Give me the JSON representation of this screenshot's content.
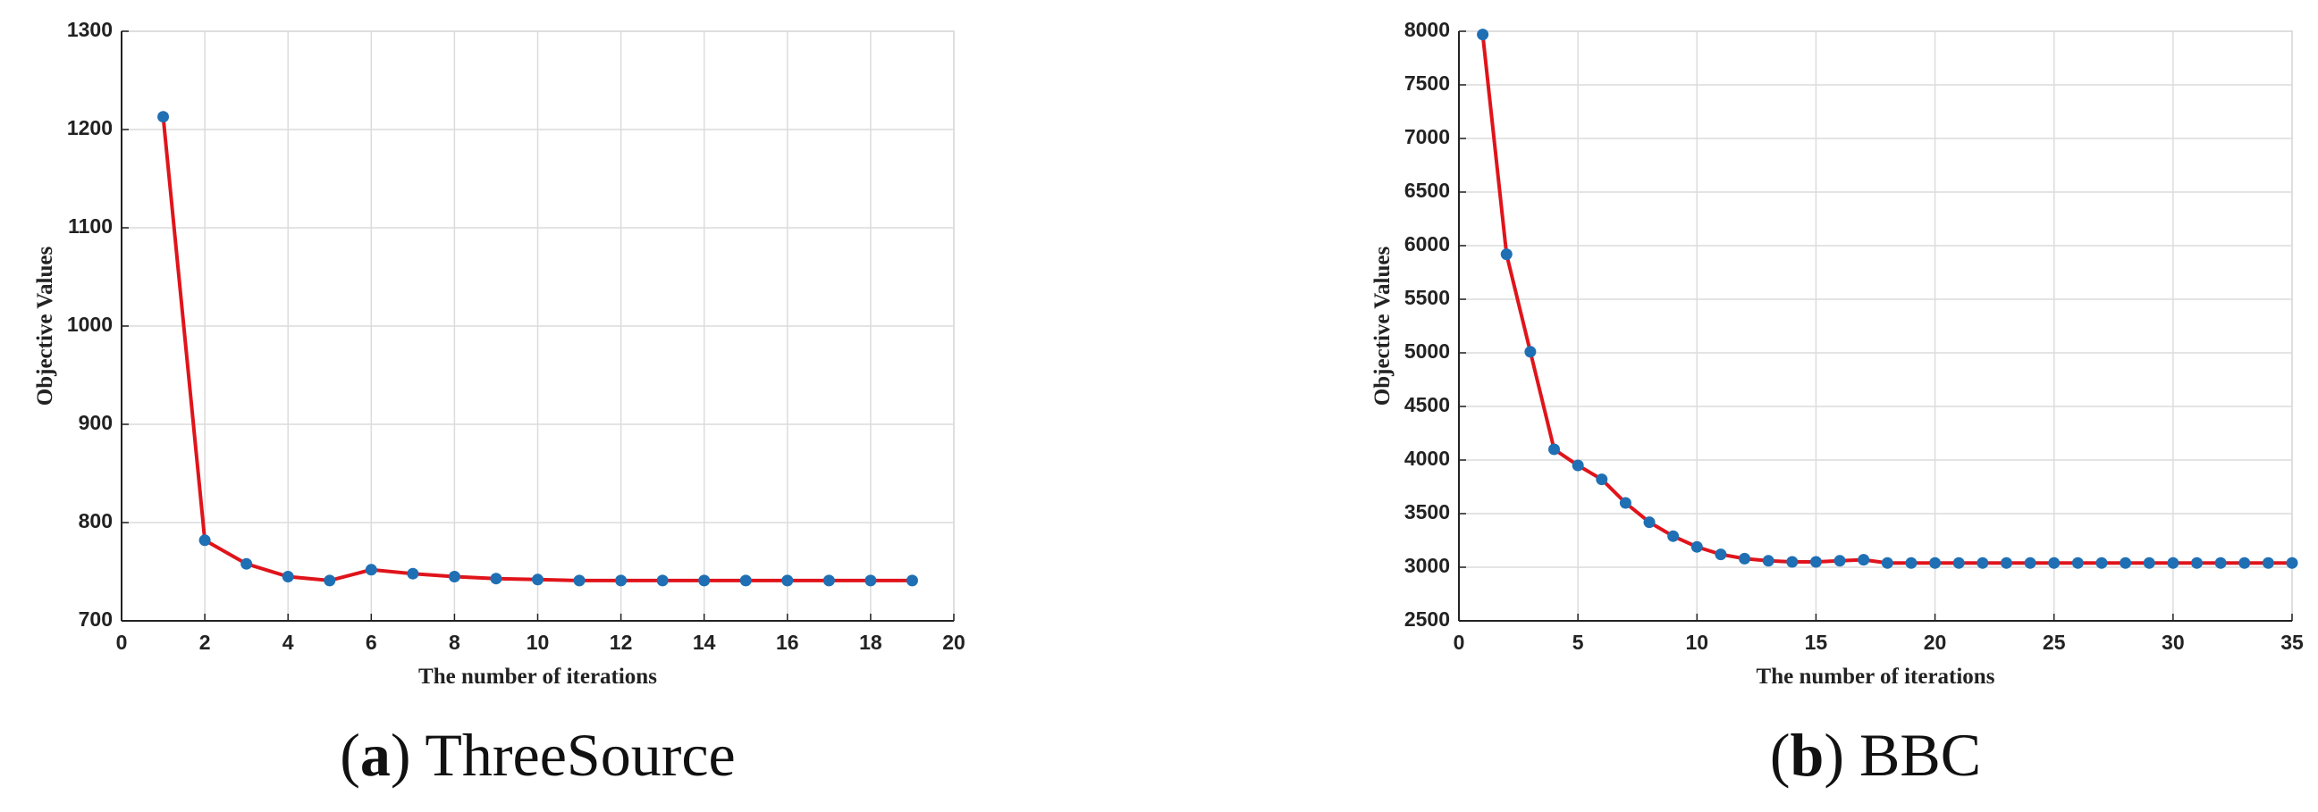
{
  "chart_data": [
    {
      "type": "line",
      "caption": [
        "(",
        "a",
        ") ThreeSource"
      ],
      "x_label": "The number of iterations",
      "y_label": "Objective Values",
      "x": [
        1,
        2,
        3,
        4,
        5,
        6,
        7,
        8,
        9,
        10,
        11,
        12,
        13,
        14,
        15,
        16,
        17,
        18,
        19
      ],
      "series": [
        {
          "color": "#e0141b",
          "marker_color": "#1f6fb4",
          "values": [
            1213,
            782,
            758,
            745,
            741,
            752,
            748,
            745,
            743,
            742,
            741,
            741,
            741,
            741,
            741,
            741,
            741,
            741,
            741
          ]
        }
      ],
      "xlim": [
        0,
        20
      ],
      "xticks": [
        0,
        2,
        4,
        6,
        8,
        10,
        12,
        14,
        16,
        18,
        20
      ],
      "ylim": [
        700,
        1300
      ],
      "yticks": [
        700,
        800,
        900,
        1000,
        1100,
        1200,
        1300
      ],
      "grid": true
    },
    {
      "type": "line",
      "caption": [
        "(",
        "b",
        ") BBC"
      ],
      "x_label": "The number of iterations",
      "y_label": "Objective Values",
      "x": [
        1,
        2,
        3,
        4,
        5,
        6,
        7,
        8,
        9,
        10,
        11,
        12,
        13,
        14,
        15,
        16,
        17,
        18,
        19,
        20,
        21,
        22,
        23,
        24,
        25,
        26,
        27,
        28,
        29,
        30,
        31,
        32,
        33,
        34,
        35
      ],
      "series": [
        {
          "color": "#e0141b",
          "marker_color": "#1f6fb4",
          "values": [
            7970,
            5920,
            5010,
            4100,
            3950,
            3820,
            3600,
            3420,
            3290,
            3190,
            3120,
            3080,
            3060,
            3050,
            3050,
            3060,
            3070,
            3040,
            3040,
            3040,
            3040,
            3040,
            3040,
            3040,
            3040,
            3040,
            3040,
            3040,
            3040,
            3040,
            3040,
            3040,
            3040,
            3040,
            3040
          ]
        }
      ],
      "xlim": [
        0,
        35
      ],
      "xticks": [
        0,
        5,
        10,
        15,
        20,
        25,
        30,
        35
      ],
      "ylim": [
        2500,
        8000
      ],
      "yticks": [
        2500,
        3000,
        3500,
        4000,
        4500,
        5000,
        5500,
        6000,
        6500,
        7000,
        7500,
        8000
      ],
      "grid": true
    }
  ]
}
